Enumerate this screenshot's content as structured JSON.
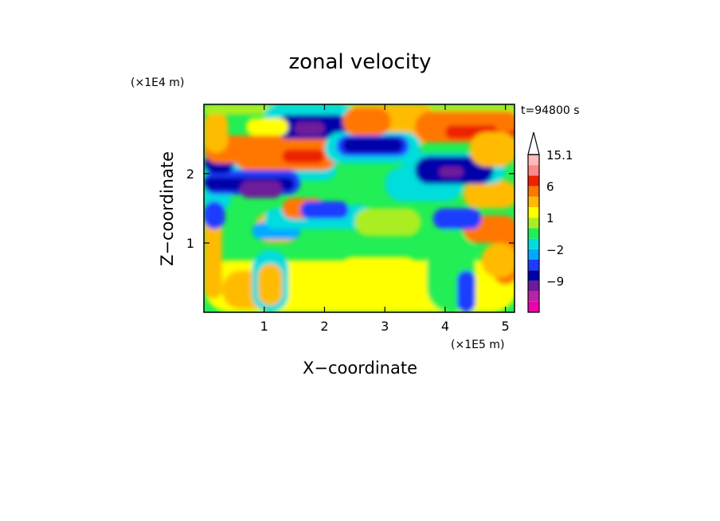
{
  "chart_data": {
    "type": "heatmap",
    "title": "zonal velocity",
    "xlabel": "X−coordinate",
    "ylabel": "Z−coordinate",
    "x_multiplier": "(×1E5 m)",
    "y_multiplier": "(×1E4 m)",
    "time_label": "t=94800 s",
    "xlim": [
      0,
      5.15
    ],
    "ylim": [
      0,
      3
    ],
    "x_ticks": [
      1,
      2,
      3,
      4,
      5
    ],
    "y_ticks": [
      1,
      2
    ],
    "colorbar": {
      "levels": [
        -15,
        -12,
        -9,
        -6,
        -3,
        -2,
        -1,
        0,
        1,
        2,
        3,
        6,
        9,
        12,
        15.1
      ],
      "labels": [
        {
          "value": "15.1",
          "level": 15.1
        },
        {
          "value": "6",
          "level": 6
        },
        {
          "value": "1",
          "level": 1
        },
        {
          "value": "−2",
          "level": -2
        },
        {
          "value": "−9",
          "level": -9
        }
      ],
      "colors": [
        "#ee00aa",
        "#bb22aa",
        "#6e1a9a",
        "#0000aa",
        "#1e3cff",
        "#00aaff",
        "#00dddd",
        "#22ee55",
        "#aaee22",
        "#ffff00",
        "#ffbb00",
        "#ff7700",
        "#ee2200",
        "#ff8888",
        "#ffbbbb"
      ],
      "extend_max_color": "#ffffff"
    }
  }
}
